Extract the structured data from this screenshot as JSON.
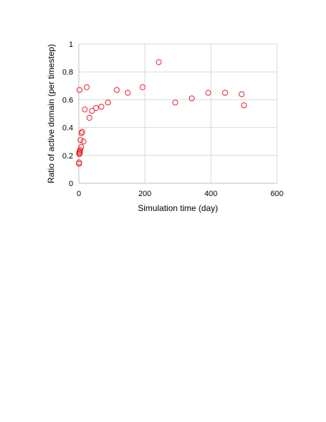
{
  "chart_data": {
    "type": "scatter",
    "title": "",
    "xlabel": "Simulation time (day)",
    "ylabel": "Ratio of active domain (per timestep)",
    "xlim": [
      0,
      600
    ],
    "ylim": [
      0,
      1
    ],
    "xticks": [
      0,
      200,
      400,
      600
    ],
    "yticks": [
      0,
      0.2,
      0.4,
      0.6,
      0.8,
      1
    ],
    "xtick_labels": [
      "0",
      "200",
      "400",
      "600"
    ],
    "ytick_labels": [
      "0",
      "0.2",
      "0.4",
      "0.6",
      "0.8",
      "1"
    ],
    "grid": true,
    "legend": "none",
    "marker": "open-circle",
    "marker_color": "#e8202a",
    "grid_color": "#d9d9d9",
    "series": [
      {
        "points": [
          [
            0.5,
            0.14
          ],
          [
            0.8,
            0.15
          ],
          [
            1.0,
            0.21
          ],
          [
            1.3,
            0.22
          ],
          [
            1.6,
            0.21
          ],
          [
            2.0,
            0.67
          ],
          [
            2.5,
            0.23
          ],
          [
            3.0,
            0.22
          ],
          [
            4.0,
            0.24
          ],
          [
            5.0,
            0.31
          ],
          [
            7.0,
            0.26
          ],
          [
            8.0,
            0.36
          ],
          [
            10.0,
            0.37
          ],
          [
            14.0,
            0.3
          ],
          [
            18.0,
            0.53
          ],
          [
            24.0,
            0.69
          ],
          [
            32.0,
            0.47
          ],
          [
            40.0,
            0.52
          ],
          [
            52.0,
            0.54
          ],
          [
            68.0,
            0.55
          ],
          [
            88.0,
            0.58
          ],
          [
            115.0,
            0.67
          ],
          [
            148.0,
            0.65
          ],
          [
            193.0,
            0.69
          ],
          [
            242.0,
            0.87
          ],
          [
            292.0,
            0.58
          ],
          [
            342.0,
            0.61
          ],
          [
            392.0,
            0.65
          ],
          [
            443.0,
            0.65
          ],
          [
            493.0,
            0.64
          ],
          [
            500.0,
            0.56
          ]
        ]
      }
    ]
  }
}
